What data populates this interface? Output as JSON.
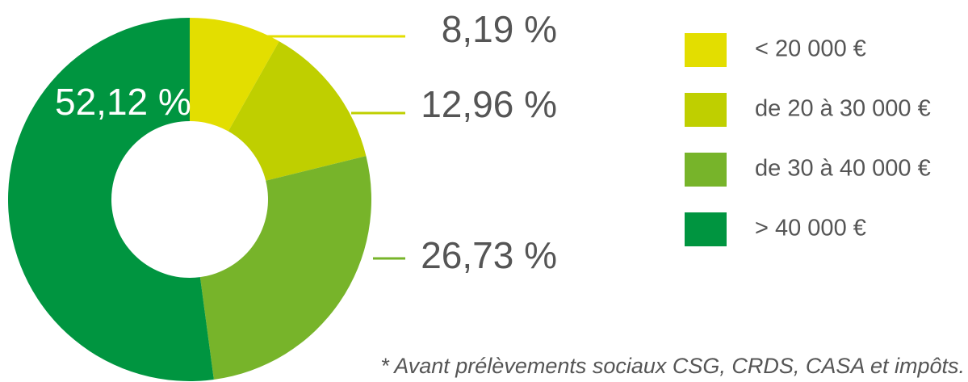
{
  "chart_data": {
    "type": "donut",
    "categories": [
      "< 20 000 €",
      "de 20 à 30 000 €",
      "de 30 à 40 000 €",
      "> 40 000 €"
    ],
    "values": [
      8.19,
      12.96,
      26.73,
      52.12
    ],
    "value_labels": [
      "8,19 %",
      "12,96 %",
      "26,73 %",
      "52,12 %"
    ],
    "colors": [
      "#e3de00",
      "#bfcf00",
      "#77b42a",
      "#009540"
    ],
    "legend": "right",
    "footnote": "* Avant prélèvements sociaux CSG, CRDS, CASA et impôts."
  }
}
